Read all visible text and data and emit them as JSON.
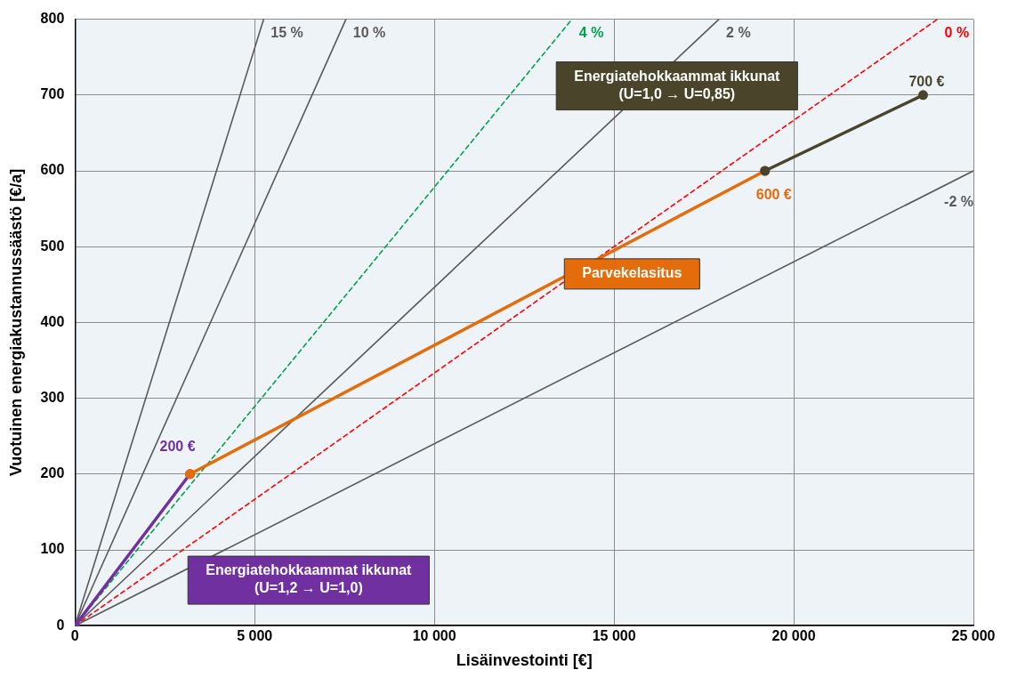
{
  "chart_data": {
    "type": "line",
    "xlabel": "Lisäinvestointi [€]",
    "ylabel": "Vuotuinen energiakustannussäästö [€/a]",
    "xlim": [
      0,
      25000
    ],
    "xticks": [
      0,
      {
        "value": 5000,
        "label": "5 000"
      },
      {
        "value": 10000,
        "label": "10 000"
      },
      {
        "value": 15000,
        "label": "15 000"
      },
      {
        "value": 20000,
        "label": "20 000"
      },
      {
        "value": 25000,
        "label": "25 000"
      }
    ],
    "ylim": [
      0,
      800
    ],
    "yticks": [
      0,
      100,
      200,
      300,
      400,
      500,
      600,
      700,
      800
    ],
    "grid": true,
    "legend": false,
    "series": [
      {
        "name": "15 %",
        "color": "#595959",
        "x": [
          0,
          5250
        ],
        "values": [
          0,
          800
        ],
        "line_style": "solid",
        "marker": "none"
      },
      {
        "name": "10 %",
        "color": "#595959",
        "x": [
          0,
          7540
        ],
        "values": [
          0,
          800
        ],
        "line_style": "solid",
        "marker": "none"
      },
      {
        "name": "4 %",
        "color": "#00a050",
        "x": [
          0,
          13830
        ],
        "values": [
          0,
          800
        ],
        "line_style": "dashed",
        "marker": "none"
      },
      {
        "name": "2 %",
        "color": "#595959",
        "x": [
          0,
          17920
        ],
        "values": [
          0,
          800
        ],
        "line_style": "solid",
        "marker": "none"
      },
      {
        "name": "0 %",
        "color": "#ff0000",
        "x": [
          0,
          24000
        ],
        "values": [
          0,
          800
        ],
        "line_style": "dashed",
        "marker": "none"
      },
      {
        "name": "-2 %",
        "color": "#595959",
        "x": [
          0,
          25000
        ],
        "values": [
          0,
          600
        ],
        "line_style": "solid",
        "marker": "none"
      },
      {
        "name": "Energiatehokkaammat ikkunat\n(U=1,2 → U=1,0)",
        "color": "#7030a0",
        "x": [
          0,
          3200
        ],
        "values": [
          0,
          200
        ],
        "line_style": "solid",
        "marker": "circle",
        "value_labels": [
          null,
          "200 €"
        ]
      },
      {
        "name": "Parvekelasitus",
        "color": "#e46c0a",
        "x": [
          3200,
          19200
        ],
        "values": [
          200,
          600
        ],
        "line_style": "solid",
        "marker": "circle",
        "value_labels": [
          null,
          "600 €"
        ]
      },
      {
        "name": "Energiatehokkaammat ikkunat\n(U=1,0 → U=0,85)",
        "color": "#4a452a",
        "x": [
          19200,
          23600
        ],
        "values": [
          600,
          700
        ],
        "line_style": "solid",
        "marker": "circle",
        "value_labels": [
          null,
          "700 €"
        ]
      }
    ]
  }
}
